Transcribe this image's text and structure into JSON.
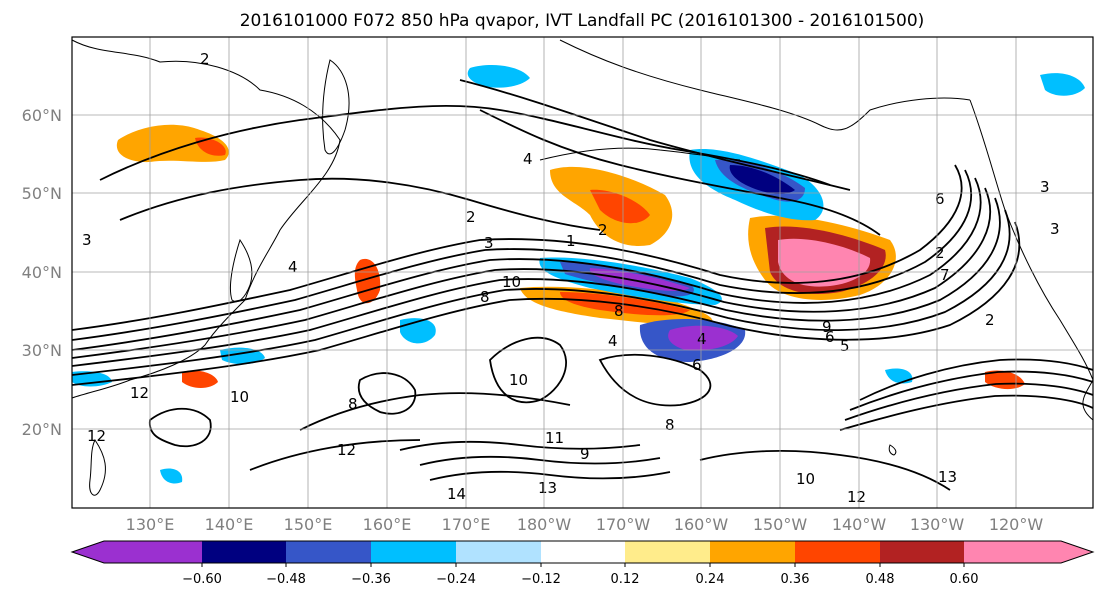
{
  "title": "2016101000 F072 850 hPa qvapor, IVT Landfall PC (2016101300 - 2016101500)",
  "lat_labels": [
    "60°N",
    "50°N",
    "40°N",
    "30°N",
    "20°N"
  ],
  "lon_labels": [
    "130°E",
    "140°E",
    "150°E",
    "160°E",
    "170°E",
    "180°W",
    "170°W",
    "160°W",
    "150°W",
    "140°W",
    "130°W",
    "120°W"
  ],
  "colorbar": {
    "colors": [
      "#9b30d0",
      "#000080",
      "#3656c8",
      "#00bfff",
      "#b0e2ff",
      "#ffffff",
      "#ffec8b",
      "#ffa500",
      "#ff4500",
      "#b22222",
      "#ff85b0"
    ],
    "tick_labels": [
      "−0.60",
      "−0.48",
      "−0.36",
      "−0.24",
      "−0.12",
      "0.12",
      "0.24",
      "0.36",
      "0.48",
      "0.60"
    ]
  },
  "contour_labels": [
    "2",
    "4",
    "2",
    "3",
    "2",
    "1",
    "3",
    "4",
    "10",
    "8",
    "12",
    "14",
    "13",
    "12",
    "10",
    "8",
    "6",
    "8",
    "5",
    "9",
    "8",
    "4",
    "2",
    "3",
    "12",
    "11",
    "10",
    "9",
    "13",
    "12",
    "10",
    "6",
    "4",
    "2",
    "6",
    "7",
    "3"
  ]
}
